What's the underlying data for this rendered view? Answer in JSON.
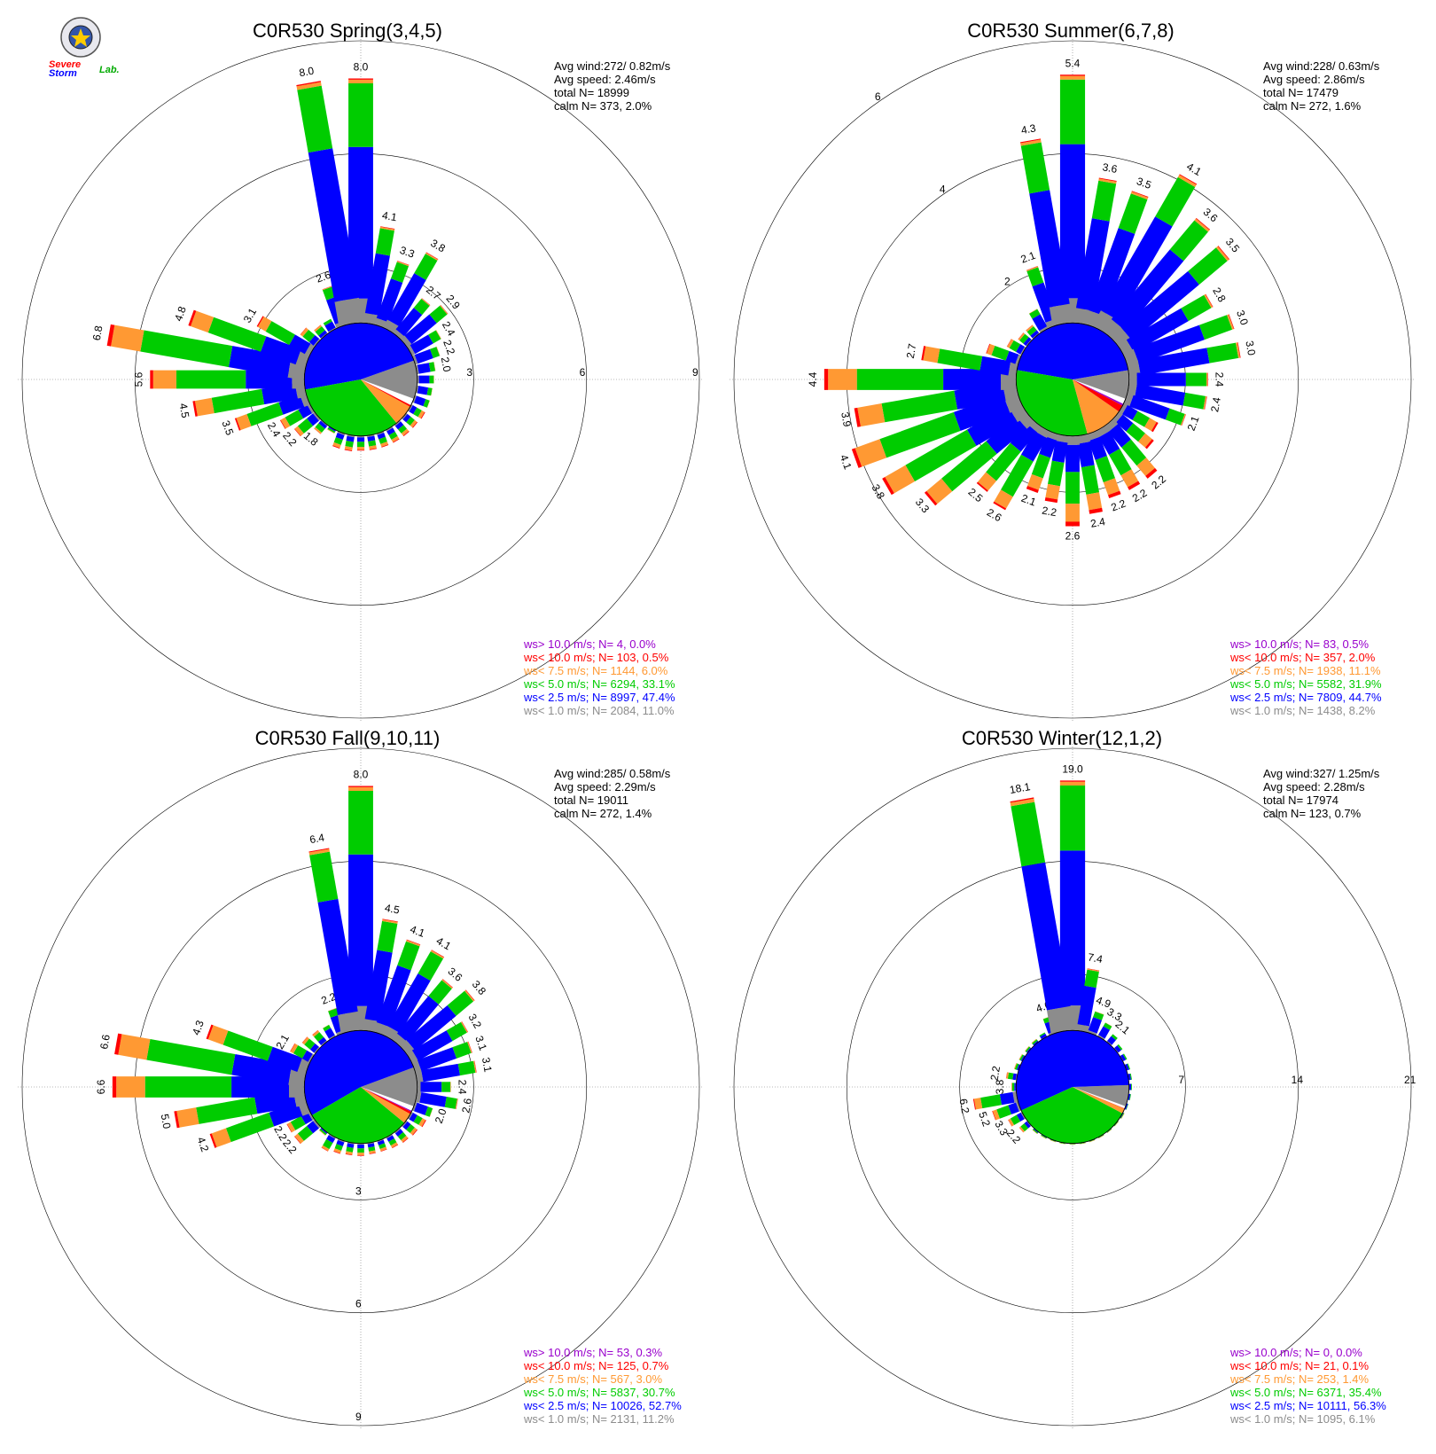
{
  "logo": {
    "text_severe": "Severe",
    "text_storm": "Storm",
    "text_lab": "Lab."
  },
  "colors": {
    "calm": "#8c8c8c",
    "lt1": "#8c8c8c",
    "lt25": "#0000ff",
    "lt5": "#00cc00",
    "lt75": "#ff9933",
    "lt10": "#ff0000",
    "gt10": "#9900cc",
    "grid": "#000000"
  },
  "chart_data": [
    {
      "type": "windrose",
      "title": "C0R530 Spring(3,4,5)",
      "stats": [
        "Avg wind:272/ 0.82m/s",
        "Avg speed: 2.46m/s",
        "total N=      18999",
        "calm N=    373,   2.0%"
      ],
      "rings": [
        3,
        6,
        9
      ],
      "ring_max": 9,
      "ring_label_style": "east",
      "hub": 1.5,
      "calm_pie": [
        0.11,
        0.474,
        0.331,
        0.06,
        0.005,
        0.0
      ],
      "bars": [
        8.0,
        4.1,
        3.3,
        3.8,
        2.7,
        2.9,
        2.4,
        2.2,
        2.0,
        1.5,
        1.4,
        1.4,
        1.4,
        1.3,
        1.3,
        1.3,
        1.3,
        1.3,
        1.3,
        1.4,
        1.4,
        1.6,
        1.8,
        2.2,
        2.4,
        3.5,
        4.5,
        5.6,
        6.8,
        4.8,
        3.1,
        2.0,
        1.8,
        1.8,
        2.6,
        8.0
      ],
      "labeled": [
        0,
        1,
        2,
        3,
        4,
        5,
        6,
        7,
        8,
        22,
        23,
        24,
        25,
        26,
        27,
        28,
        29,
        30,
        34,
        35
      ],
      "legend": [
        "ws> 10.0 m/s; N=     4,  0.0%",
        "ws< 10.0 m/s; N=   103,  0.5%",
        "ws<  7.5 m/s; N=  1144,  6.0%",
        "ws<  5.0 m/s; N=  6294, 33.1%",
        "ws<  2.5 m/s; N=  8997, 47.4%",
        "ws<  1.0 m/s; N=  2084, 11.0%"
      ]
    },
    {
      "type": "windrose",
      "title": "C0R530 Summer(6,7,8)",
      "stats": [
        "Avg wind:228/ 0.63m/s",
        "Avg speed: 2.86m/s",
        "total N=      17479",
        "calm N=    272,   1.6%"
      ],
      "rings": [
        2,
        4,
        6
      ],
      "ring_max": 6,
      "ring_label_style": "nnw",
      "hub": 1.0,
      "calm_pie": [
        0.082,
        0.447,
        0.319,
        0.111,
        0.02,
        0.005
      ],
      "bars": [
        5.4,
        3.6,
        3.5,
        4.1,
        3.6,
        3.5,
        2.8,
        3.0,
        3.0,
        2.4,
        2.4,
        2.1,
        1.7,
        1.8,
        2.2,
        2.2,
        2.2,
        2.4,
        2.6,
        2.2,
        2.1,
        2.6,
        2.5,
        3.3,
        3.8,
        4.1,
        3.9,
        4.4,
        2.7,
        1.6,
        1.3,
        1.2,
        1.2,
        1.4,
        2.1,
        4.3
      ],
      "labeled": [
        0,
        1,
        2,
        3,
        4,
        5,
        6,
        7,
        8,
        9,
        10,
        11,
        14,
        15,
        16,
        17,
        18,
        19,
        20,
        21,
        22,
        23,
        24,
        25,
        26,
        27,
        28,
        34,
        35
      ],
      "legend": [
        "ws> 10.0 m/s; N=    83,  0.5%",
        "ws< 10.0 m/s; N=   357,  2.0%",
        "ws<  7.5 m/s; N=  1938, 11.1%",
        "ws<  5.0 m/s; N=  5582, 31.9%",
        "ws<  2.5 m/s; N=  7809, 44.7%",
        "ws<  1.0 m/s; N=  1438,  8.2%"
      ]
    },
    {
      "type": "windrose",
      "title": "C0R530 Fall(9,10,11)",
      "stats": [
        "Avg wind:285/ 0.58m/s",
        "Avg speed: 2.29m/s",
        "total N=      19011",
        "calm N=    272,   1.4%"
      ],
      "rings": [
        3,
        6,
        9
      ],
      "ring_max": 9,
      "ring_label_style": "south",
      "hub": 1.5,
      "calm_pie": [
        0.112,
        0.527,
        0.307,
        0.03,
        0.007,
        0.003
      ],
      "bars": [
        8.0,
        4.5,
        4.1,
        4.1,
        3.6,
        3.8,
        3.2,
        3.1,
        3.1,
        2.4,
        2.6,
        2.0,
        1.5,
        1.3,
        1.2,
        1.1,
        1.0,
        1.0,
        1.1,
        1.1,
        1.2,
        1.4,
        1.6,
        2.2,
        2.2,
        4.2,
        5.0,
        6.6,
        6.6,
        4.3,
        2.1,
        1.5,
        1.3,
        1.2,
        2.2,
        6.4
      ],
      "labeled": [
        0,
        1,
        2,
        3,
        4,
        5,
        6,
        7,
        8,
        9,
        10,
        11,
        23,
        24,
        25,
        26,
        27,
        28,
        29,
        30,
        34,
        35
      ],
      "legend": [
        "ws> 10.0 m/s; N=    53,  0.3%",
        "ws< 10.0 m/s; N=   125,  0.7%",
        "ws<  7.5 m/s; N=   567,  3.0%",
        "ws<  5.0 m/s; N=  5837, 30.7%",
        "ws<  2.5 m/s; N= 10026, 52.7%",
        "ws<  1.0 m/s; N=  2131, 11.2%"
      ]
    },
    {
      "type": "windrose",
      "title": "C0R530 Winter(12,1,2)",
      "stats": [
        "Avg wind:327/ 1.25m/s",
        "Avg speed: 2.28m/s",
        "total N=      17974",
        "calm N=    123,   0.7%"
      ],
      "rings": [
        7,
        14,
        21
      ],
      "ring_max": 21,
      "ring_label_style": "east",
      "hub": 3.5,
      "calm_pie": [
        0.061,
        0.563,
        0.354,
        0.014,
        0.001,
        0.0
      ],
      "bars": [
        19.0,
        7.4,
        4.9,
        3.3,
        2.1,
        1.3,
        1.0,
        0.8,
        0.7,
        0.6,
        0.5,
        0.4,
        0.4,
        0.3,
        0.3,
        0.3,
        0.3,
        0.3,
        0.3,
        0.3,
        0.3,
        0.4,
        0.5,
        2.2,
        3.3,
        5.2,
        6.2,
        3.8,
        2.2,
        1.0,
        0.8,
        0.7,
        0.8,
        1.0,
        4.6,
        18.1
      ],
      "labeled": [
        0,
        1,
        2,
        3,
        4,
        23,
        24,
        25,
        26,
        27,
        28,
        34,
        35
      ],
      "legend": [
        "ws> 10.0 m/s; N=     0,  0.0%",
        "ws< 10.0 m/s; N=    21,  0.1%",
        "ws<  7.5 m/s; N=   253,  1.4%",
        "ws<  5.0 m/s; N=  6371, 35.4%",
        "ws<  2.5 m/s; N= 10111, 56.3%",
        "ws<  1.0 m/s; N=  1095,  6.1%"
      ]
    }
  ]
}
